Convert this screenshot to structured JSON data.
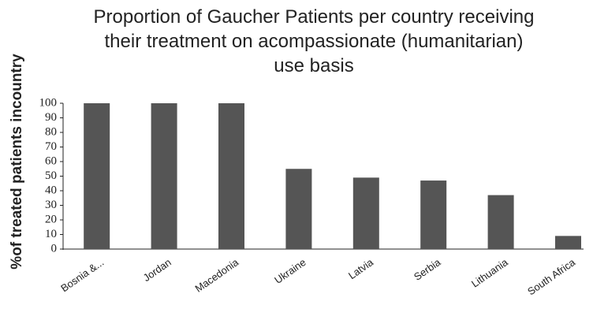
{
  "chart_data": {
    "type": "bar",
    "title": "Proportion of Gaucher Patients per country receiving their treatment on acompassionate (humanitarian) use basis",
    "y_label": "%of treated patients incountry",
    "categories": [
      "Bosnia &...",
      "Jordan",
      "Macedonia",
      "Ukraine",
      "Latvia",
      "Serbia",
      "Lithuania",
      "South Africa"
    ],
    "values": [
      100,
      100,
      100,
      55,
      49,
      47,
      37,
      9
    ],
    "color": "#555555",
    "ylim": [
      0,
      100
    ],
    "yticks": [
      0,
      10,
      20,
      30,
      40,
      50,
      60,
      70,
      80,
      90,
      100
    ],
    "grid": false
  }
}
